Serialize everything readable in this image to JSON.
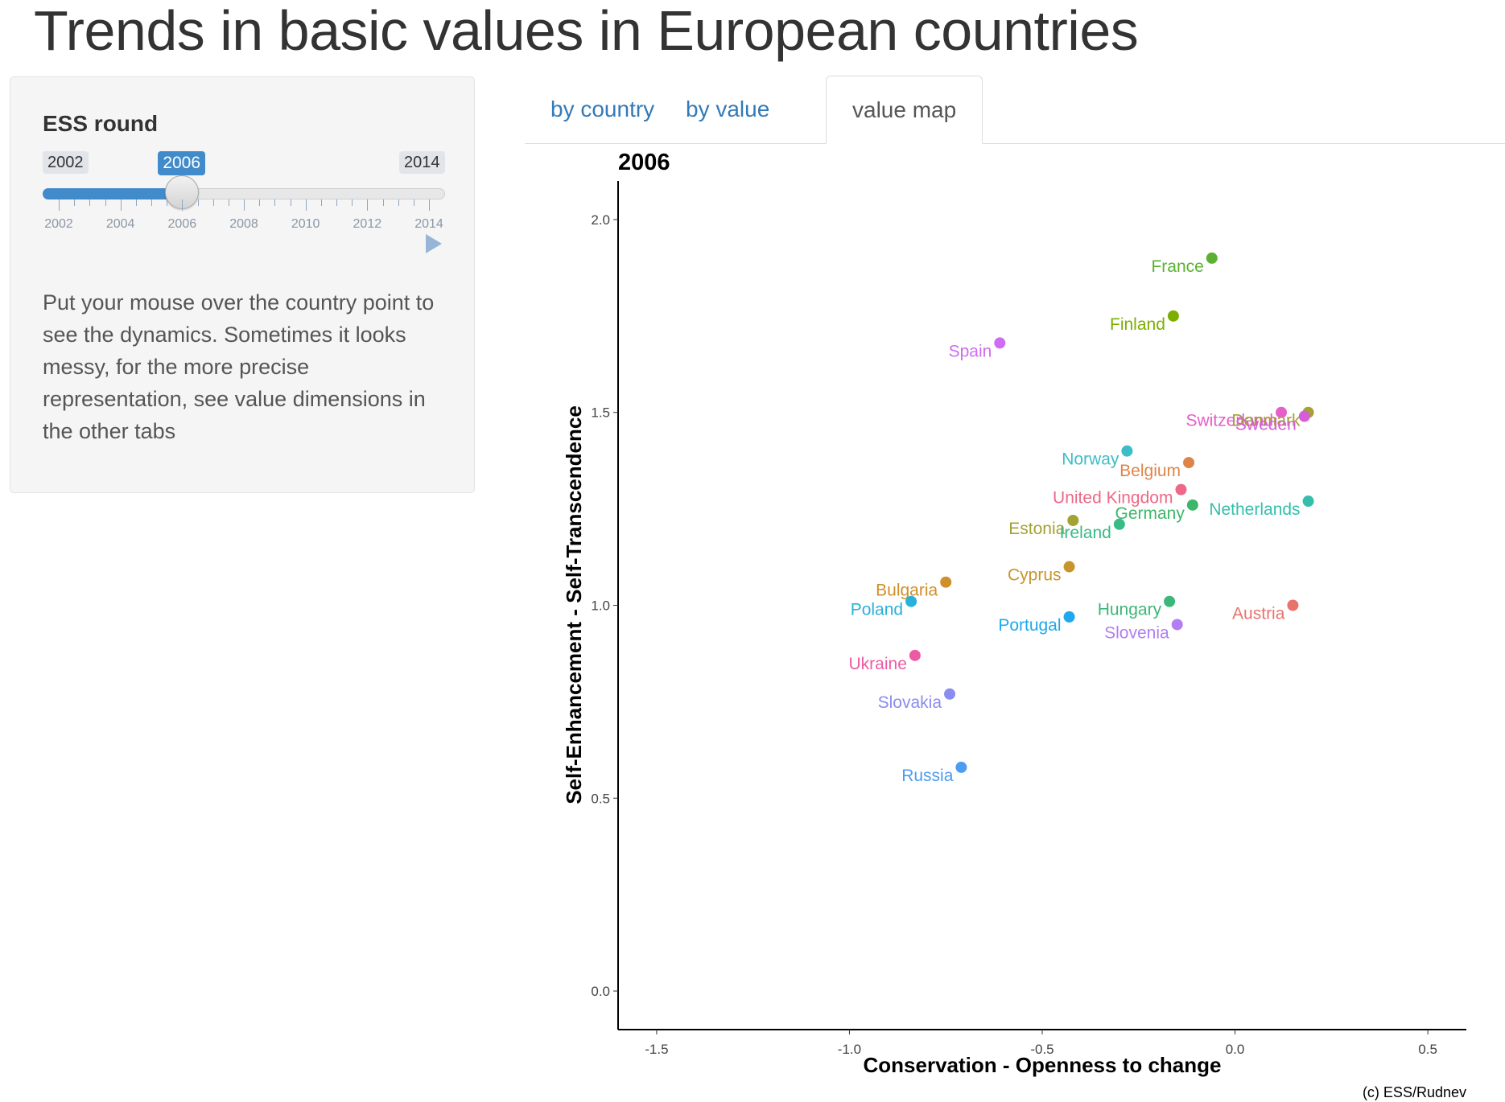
{
  "app": {
    "title": "Trends in basic values in European countries"
  },
  "sidebar": {
    "slider": {
      "label": "ESS round",
      "min_label": "2002",
      "max_label": "2014",
      "value_label": "2006",
      "min": 2002,
      "max": 2014,
      "value": 2006,
      "tick_labels": [
        "2002",
        "2004",
        "2006",
        "2008",
        "2010",
        "2012",
        "2014"
      ],
      "accent_color": "#428bca"
    },
    "play_icon": "play-icon",
    "help_text": "Put your mouse over the country point to see the dynamics. Sometimes it looks messy, for the more precise representation, see value dimensions in the other tabs"
  },
  "tabs": [
    {
      "label": "by country",
      "active": false
    },
    {
      "label": "by value",
      "active": false
    },
    {
      "label": "value map",
      "active": true
    }
  ],
  "chart_data": {
    "type": "scatter",
    "title": "2006",
    "xlabel": "Conservation - Openness to change",
    "ylabel": "Self-Enhancement - Self-Transcendence",
    "xlim": [
      -1.6,
      0.6
    ],
    "ylim": [
      -0.1,
      2.1
    ],
    "xticks": [
      -1.5,
      -1.0,
      -0.5,
      0.0,
      0.5
    ],
    "yticks": [
      0.0,
      0.5,
      1.0,
      1.5,
      2.0
    ],
    "xtick_labels": [
      "-1.5",
      "-1.0",
      "-0.5",
      "0.0",
      "0.5"
    ],
    "ytick_labels": [
      "0.0",
      "0.5",
      "1.0",
      "1.5",
      "2.0"
    ],
    "grid": false,
    "legend": "none",
    "caption": "(c) ESS/Rudnev",
    "points": [
      {
        "name": "France",
        "x": -0.06,
        "y": 1.9,
        "color": "#5cb032"
      },
      {
        "name": "Finland",
        "x": -0.16,
        "y": 1.75,
        "color": "#7cae00"
      },
      {
        "name": "Spain",
        "x": -0.61,
        "y": 1.68,
        "color": "#cf6cf3"
      },
      {
        "name": "Switzerland",
        "x": 0.12,
        "y": 1.5,
        "color": "#e55ec9"
      },
      {
        "name": "Denmark",
        "x": 0.19,
        "y": 1.5,
        "color": "#a3a233"
      },
      {
        "name": "Sweden",
        "x": 0.18,
        "y": 1.49,
        "color": "#d75dd7"
      },
      {
        "name": "Norway",
        "x": -0.28,
        "y": 1.4,
        "color": "#3ebdc7"
      },
      {
        "name": "Belgium",
        "x": -0.12,
        "y": 1.37,
        "color": "#dd8548"
      },
      {
        "name": "United Kingdom",
        "x": -0.14,
        "y": 1.3,
        "color": "#ee6887"
      },
      {
        "name": "Germany",
        "x": -0.11,
        "y": 1.26,
        "color": "#3cb76a"
      },
      {
        "name": "Netherlands",
        "x": 0.19,
        "y": 1.27,
        "color": "#34bfac"
      },
      {
        "name": "Estonia",
        "x": -0.42,
        "y": 1.22,
        "color": "#a3a233"
      },
      {
        "name": "Ireland",
        "x": -0.3,
        "y": 1.21,
        "color": "#37bb87"
      },
      {
        "name": "Cyprus",
        "x": -0.43,
        "y": 1.1,
        "color": "#c8952c"
      },
      {
        "name": "Bulgaria",
        "x": -0.75,
        "y": 1.06,
        "color": "#cf8f2a"
      },
      {
        "name": "Poland",
        "x": -0.84,
        "y": 1.01,
        "color": "#28b1d9"
      },
      {
        "name": "Hungary",
        "x": -0.17,
        "y": 1.01,
        "color": "#3cb778"
      },
      {
        "name": "Austria",
        "x": 0.15,
        "y": 1.0,
        "color": "#e8726c"
      },
      {
        "name": "Portugal",
        "x": -0.43,
        "y": 0.97,
        "color": "#1fa8ed"
      },
      {
        "name": "Slovenia",
        "x": -0.15,
        "y": 0.95,
        "color": "#b27ef2"
      },
      {
        "name": "Ukraine",
        "x": -0.83,
        "y": 0.87,
        "color": "#ed5aa4"
      },
      {
        "name": "Slovakia",
        "x": -0.74,
        "y": 0.77,
        "color": "#8a8cf0"
      },
      {
        "name": "Russia",
        "x": -0.71,
        "y": 0.58,
        "color": "#4c9cf0"
      }
    ]
  }
}
